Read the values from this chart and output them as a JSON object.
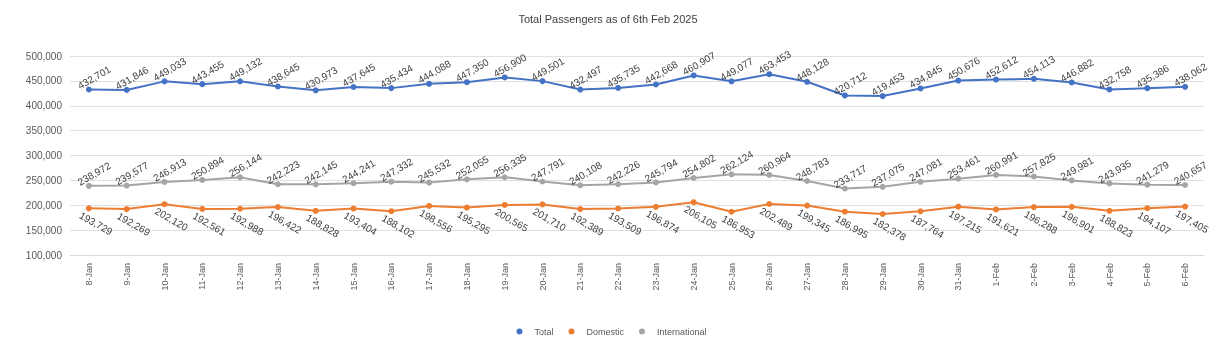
{
  "chart_data": {
    "type": "line",
    "title": "Total Passengers as of 6th Feb 2025",
    "categories": [
      "8-Jan",
      "9-Jan",
      "10-Jan",
      "11-Jan",
      "12-Jan",
      "13-Jan",
      "14-Jan",
      "15-Jan",
      "16-Jan",
      "17-Jan",
      "18-Jan",
      "19-Jan",
      "20-Jan",
      "21-Jan",
      "22-Jan",
      "23-Jan",
      "24-Jan",
      "25-Jan",
      "26-Jan",
      "27-Jan",
      "28-Jan",
      "29-Jan",
      "30-Jan",
      "31-Jan",
      "1-Feb",
      "2-Feb",
      "3-Feb",
      "4-Feb",
      "5-Feb",
      "6-Feb"
    ],
    "series": [
      {
        "name": "Total",
        "color": "#4472c4",
        "values": [
          432701,
          431846,
          449033,
          443455,
          449132,
          438645,
          430973,
          437645,
          435434,
          444088,
          447350,
          456900,
          449501,
          432497,
          435735,
          442668,
          460907,
          449077,
          463453,
          448128,
          420712,
          419453,
          434845,
          450676,
          452612,
          454113,
          446882,
          432758,
          435386,
          438062
        ],
        "value_labels": [
          "432,701",
          "431,846",
          "449,033",
          "443,455",
          "449,132",
          "438,645",
          "430,973",
          "437,645",
          "435,434",
          "444,088",
          "447,350",
          "456,900",
          "449,501",
          "432,497",
          "435,735",
          "442,668",
          "460,907",
          "449,077",
          "463,453",
          "448,128",
          "420,712",
          "419,453",
          "434,845",
          "450,676",
          "452,612",
          "454,113",
          "446,882",
          "432,758",
          "435,386",
          "438,062"
        ]
      },
      {
        "name": "Domestic",
        "color": "#ed7d31",
        "values": [
          193729,
          192269,
          202120,
          192561,
          192988,
          196422,
          188828,
          193404,
          188102,
          198556,
          195295,
          200565,
          201710,
          192389,
          193509,
          196874,
          206105,
          186953,
          202489,
          199345,
          186995,
          182378,
          187764,
          197215,
          191621,
          196288,
          196901,
          188823,
          194107,
          197405
        ],
        "value_labels": [
          "193,729",
          "192,269",
          "202,120",
          "192,561",
          "192,988",
          "196,422",
          "188,828",
          "193,404",
          "188,102",
          "198,556",
          "195,295",
          "200,565",
          "201,710",
          "192,389",
          "193,509",
          "196,874",
          "206,105",
          "186,953",
          "202,489",
          "199,345",
          "186,995",
          "182,378",
          "187,764",
          "197,215",
          "191,621",
          "196,288",
          "196,901",
          "188,823",
          "194,107",
          "197,405"
        ]
      },
      {
        "name": "International",
        "color": "#a5a5a5",
        "values": [
          238972,
          239577,
          246913,
          250894,
          256144,
          242223,
          242145,
          244241,
          247332,
          245532,
          252055,
          256335,
          247791,
          240108,
          242226,
          245794,
          254802,
          262124,
          260964,
          248783,
          233717,
          237075,
          247081,
          253461,
          260991,
          257825,
          249981,
          243935,
          241279,
          240657
        ],
        "value_labels": [
          "238,972",
          "239,577",
          "246,913",
          "250,894",
          "256,144",
          "242,223",
          "242,145",
          "244,241",
          "247,332",
          "245,532",
          "252,055",
          "256,335",
          "247,791",
          "240,108",
          "242,226",
          "245,794",
          "254,802",
          "262,124",
          "260,964",
          "248,783",
          "233,717",
          "237,075",
          "247,081",
          "253,461",
          "260,991",
          "257,825",
          "249,981",
          "243,935",
          "241,279",
          "240,657"
        ]
      }
    ],
    "ylim": [
      100000,
      500000
    ],
    "yticks": [
      {
        "value": 100000,
        "label": "100,000"
      },
      {
        "value": 150000,
        "label": "150,000"
      },
      {
        "value": 200000,
        "label": "200,000"
      },
      {
        "value": 250000,
        "label": "250,000"
      },
      {
        "value": 300000,
        "label": "300,000"
      },
      {
        "value": 350000,
        "label": "350,000"
      },
      {
        "value": 400000,
        "label": "400,000"
      },
      {
        "value": 450000,
        "label": "450,000"
      },
      {
        "value": 500000,
        "label": "500,000"
      }
    ],
    "grid": "y",
    "legend": "bottom",
    "marker": "circle",
    "line_style": "solid"
  }
}
